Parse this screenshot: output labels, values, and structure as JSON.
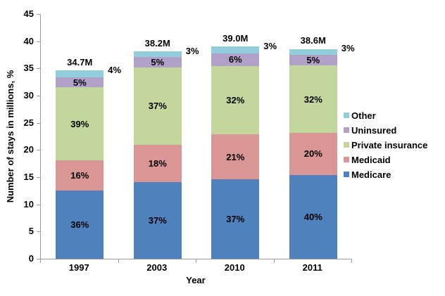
{
  "chart_data": {
    "type": "bar",
    "subtype": "stacked",
    "title": "",
    "xlabel": "Year",
    "ylabel": "Number of stays  in millions, %",
    "ylim": [
      0,
      45
    ],
    "ytick_step": 5,
    "yticks": [
      "0",
      "5",
      "10",
      "15",
      "20",
      "25",
      "30",
      "35",
      "40",
      "45"
    ],
    "grid": "off",
    "legend_position": "right",
    "categories": [
      "1997",
      "2003",
      "2010",
      "2011"
    ],
    "totals": [
      34.7,
      38.2,
      39.0,
      38.6
    ],
    "total_labels": [
      "34.7M",
      "38.2M",
      "39.0M",
      "38.6M"
    ],
    "series": [
      {
        "name": "Medicare",
        "color": "#4f81bd",
        "pct": [
          36,
          37,
          37,
          40
        ],
        "pct_labels": [
          "36%",
          "37%",
          "37%",
          "40%"
        ],
        "label_outside": false
      },
      {
        "name": "Medicaid",
        "color": "#d99694",
        "pct": [
          16,
          18,
          21,
          20
        ],
        "pct_labels": [
          "16%",
          "18%",
          "21%",
          "20%"
        ],
        "label_outside": false
      },
      {
        "name": "Private insurance",
        "color": "#c3d69b",
        "pct": [
          39,
          37,
          32,
          32
        ],
        "pct_labels": [
          "39%",
          "37%",
          "32%",
          "32%"
        ],
        "label_outside": false
      },
      {
        "name": "Uninsured",
        "color": "#b1a0c7",
        "pct": [
          5,
          5,
          6,
          5
        ],
        "pct_labels": [
          "5%",
          "5%",
          "6%",
          "5%"
        ],
        "label_outside": false
      },
      {
        "name": "Other",
        "color": "#92cddc",
        "pct": [
          4,
          3,
          3,
          3
        ],
        "pct_labels": [
          "4%",
          "3%",
          "3%",
          "3%"
        ],
        "label_outside": true
      }
    ],
    "legend": [
      {
        "label": "Other",
        "color": "#92cddc"
      },
      {
        "label": "Uninsured",
        "color": "#b1a0c7"
      },
      {
        "label": "Private insurance",
        "color": "#c3d69b"
      },
      {
        "label": "Medicaid",
        "color": "#d99694"
      },
      {
        "label": "Medicare",
        "color": "#4f81bd"
      }
    ],
    "colors": {
      "axis": "#9b9b9b",
      "text": "#000000",
      "background": "#ffffff"
    }
  }
}
